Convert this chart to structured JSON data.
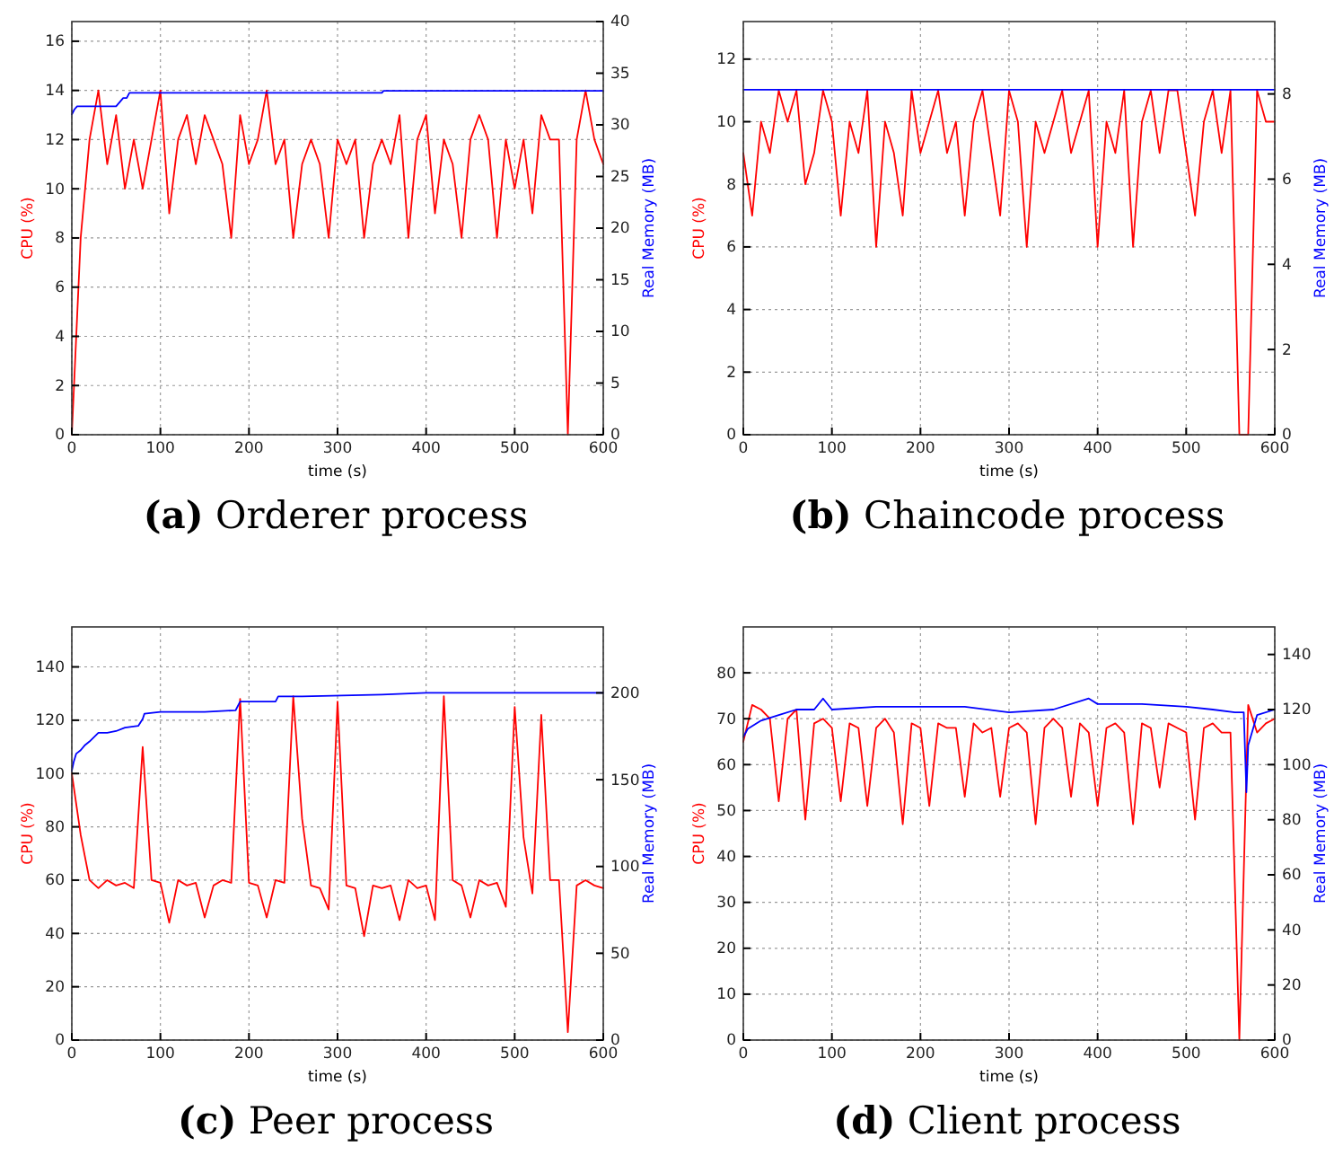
{
  "chart_data": [
    {
      "type": "line",
      "title": "(a) Orderer process",
      "xlabel": "time (s)",
      "ylabel": "CPU (%)",
      "y2label": "Real Memory (MB)",
      "xlim": [
        0,
        600
      ],
      "xticks": [
        0,
        100,
        200,
        300,
        400,
        500,
        600
      ],
      "ylim": [
        0,
        16.8
      ],
      "yticks": [
        0,
        2,
        4,
        6,
        8,
        10,
        12,
        14,
        16
      ],
      "y2lim": [
        0,
        40
      ],
      "y2ticks": [
        0,
        5,
        10,
        15,
        20,
        25,
        30,
        35,
        40
      ],
      "grid": true,
      "series": [
        {
          "color": "#ff0000",
          "x": [
            0,
            10,
            20,
            30,
            40,
            50,
            60,
            70,
            80,
            90,
            100,
            110,
            120,
            130,
            140,
            150,
            160,
            170,
            180,
            190,
            200,
            210,
            220,
            230,
            240,
            250,
            260,
            270,
            280,
            290,
            300,
            310,
            320,
            330,
            340,
            350,
            360,
            370,
            380,
            390,
            400,
            410,
            420,
            430,
            440,
            450,
            460,
            470,
            480,
            490,
            500,
            510,
            520,
            530,
            540,
            550,
            560,
            570,
            580,
            590,
            600
          ],
          "values": [
            0,
            8,
            12,
            14,
            11,
            13,
            10,
            12,
            10,
            12,
            14,
            9,
            12,
            13,
            11,
            13,
            12,
            11,
            8,
            13,
            11,
            12,
            14,
            11,
            12,
            8,
            11,
            12,
            11,
            8,
            12,
            11,
            12,
            8,
            11,
            12,
            11,
            13,
            8,
            12,
            13,
            9,
            12,
            11,
            8,
            12,
            13,
            12,
            8,
            12,
            10,
            12,
            9,
            13,
            12,
            12,
            0,
            12,
            14,
            12,
            11
          ]
        },
        {
          "color": "#0000ff",
          "axis": "y2",
          "x": [
            0,
            3,
            6,
            10,
            50,
            55,
            58,
            62,
            65,
            350,
            352,
            600
          ],
          "values": [
            31,
            31.5,
            31.8,
            31.8,
            31.8,
            32.3,
            32.6,
            32.6,
            33.1,
            33.1,
            33.3,
            33.3
          ]
        }
      ]
    },
    {
      "type": "line",
      "title": "(b) Chaincode process",
      "xlabel": "time (s)",
      "ylabel": "CPU (%)",
      "y2label": "Real Memory (MB)",
      "xlim": [
        0,
        600
      ],
      "xticks": [
        0,
        100,
        200,
        300,
        400,
        500,
        600
      ],
      "ylim": [
        0,
        13.2
      ],
      "yticks": [
        0,
        2,
        4,
        6,
        8,
        10,
        12
      ],
      "y2lim": [
        0,
        9.7
      ],
      "y2ticks": [
        0,
        2,
        4,
        6,
        8
      ],
      "grid": true,
      "series": [
        {
          "color": "#ff0000",
          "x": [
            0,
            10,
            20,
            30,
            40,
            50,
            60,
            70,
            80,
            90,
            100,
            110,
            120,
            130,
            140,
            150,
            160,
            170,
            180,
            190,
            200,
            210,
            220,
            230,
            240,
            250,
            260,
            270,
            280,
            290,
            300,
            310,
            320,
            330,
            340,
            350,
            360,
            370,
            380,
            390,
            400,
            410,
            420,
            430,
            440,
            450,
            460,
            470,
            480,
            490,
            500,
            510,
            520,
            530,
            540,
            550,
            560,
            570,
            580,
            590,
            600
          ],
          "values": [
            9,
            7,
            10,
            9,
            11,
            10,
            11,
            8,
            9,
            11,
            10,
            7,
            10,
            9,
            11,
            6,
            10,
            9,
            7,
            11,
            9,
            10,
            11,
            9,
            10,
            7,
            10,
            11,
            9,
            7,
            11,
            10,
            6,
            10,
            9,
            10,
            11,
            9,
            10,
            11,
            6,
            10,
            9,
            11,
            6,
            10,
            11,
            9,
            11,
            11,
            9,
            7,
            10,
            11,
            9,
            11,
            0,
            0,
            11,
            10,
            10
          ]
        },
        {
          "color": "#0000ff",
          "axis": "y2",
          "x": [
            0,
            600
          ],
          "values": [
            8.1,
            8.1
          ]
        }
      ]
    },
    {
      "type": "line",
      "title": "(c) Peer process",
      "xlabel": "time (s)",
      "ylabel": "CPU (%)",
      "y2label": "Real Memory (MB)",
      "xlim": [
        0,
        600
      ],
      "xticks": [
        0,
        100,
        200,
        300,
        400,
        500,
        600
      ],
      "ylim": [
        0,
        155
      ],
      "yticks": [
        0,
        20,
        40,
        60,
        80,
        100,
        120,
        140
      ],
      "y2lim": [
        0,
        238
      ],
      "y2ticks": [
        0,
        50,
        100,
        150,
        200
      ],
      "grid": true,
      "series": [
        {
          "color": "#ff0000",
          "x": [
            0,
            10,
            20,
            30,
            40,
            50,
            60,
            70,
            80,
            90,
            100,
            110,
            120,
            130,
            140,
            150,
            160,
            170,
            180,
            190,
            200,
            210,
            220,
            230,
            240,
            250,
            260,
            270,
            280,
            290,
            300,
            310,
            320,
            330,
            340,
            350,
            360,
            370,
            380,
            390,
            400,
            410,
            420,
            430,
            440,
            450,
            460,
            470,
            480,
            490,
            500,
            510,
            520,
            530,
            540,
            550,
            560,
            570,
            580,
            590,
            600
          ],
          "values": [
            100,
            77,
            60,
            57,
            60,
            58,
            59,
            57,
            110,
            60,
            59,
            44,
            60,
            58,
            59,
            46,
            58,
            60,
            59,
            128,
            59,
            58,
            46,
            60,
            59,
            129,
            83,
            58,
            57,
            49,
            127,
            58,
            57,
            39,
            58,
            57,
            58,
            45,
            60,
            57,
            58,
            45,
            129,
            60,
            58,
            46,
            60,
            58,
            59,
            50,
            125,
            76,
            55,
            122,
            60,
            60,
            3,
            58,
            60,
            58,
            57
          ]
        },
        {
          "color": "#0000ff",
          "axis": "y2",
          "x": [
            0,
            2,
            5,
            10,
            15,
            20,
            30,
            40,
            50,
            60,
            75,
            80,
            82,
            100,
            150,
            185,
            190,
            230,
            233,
            260,
            350,
            400,
            600
          ],
          "values": [
            155,
            160,
            165,
            167,
            170,
            172,
            177,
            177,
            178,
            180,
            181,
            185,
            188,
            189,
            189,
            190,
            195,
            195,
            198,
            198,
            199,
            200,
            200
          ]
        }
      ]
    },
    {
      "type": "line",
      "title": "(d) Client process",
      "xlabel": "time (s)",
      "ylabel": "CPU (%)",
      "y2label": "Real Memory (MB)",
      "xlim": [
        0,
        600
      ],
      "xticks": [
        0,
        100,
        200,
        300,
        400,
        500,
        600
      ],
      "ylim": [
        0,
        90
      ],
      "yticks": [
        0,
        10,
        20,
        30,
        40,
        50,
        60,
        70,
        80
      ],
      "y2lim": [
        0,
        150
      ],
      "y2ticks": [
        0,
        20,
        40,
        60,
        80,
        100,
        120,
        140
      ],
      "grid": true,
      "series": [
        {
          "color": "#ff0000",
          "x": [
            0,
            10,
            20,
            30,
            40,
            50,
            60,
            70,
            80,
            90,
            100,
            110,
            120,
            130,
            140,
            150,
            160,
            170,
            180,
            190,
            200,
            210,
            220,
            230,
            240,
            250,
            260,
            270,
            280,
            290,
            300,
            310,
            320,
            330,
            340,
            350,
            360,
            370,
            380,
            390,
            400,
            410,
            420,
            430,
            440,
            450,
            460,
            470,
            480,
            490,
            500,
            510,
            520,
            530,
            540,
            550,
            560,
            570,
            580,
            590,
            600
          ],
          "values": [
            65,
            73,
            72,
            70,
            52,
            70,
            72,
            48,
            69,
            70,
            68,
            52,
            69,
            68,
            51,
            68,
            70,
            67,
            47,
            69,
            68,
            51,
            69,
            68,
            68,
            53,
            69,
            67,
            68,
            53,
            68,
            69,
            67,
            47,
            68,
            70,
            68,
            53,
            69,
            67,
            51,
            68,
            69,
            67,
            47,
            69,
            68,
            55,
            69,
            68,
            67,
            48,
            68,
            69,
            67,
            67,
            0,
            73,
            67,
            69,
            70
          ]
        },
        {
          "color": "#0000ff",
          "axis": "y2",
          "x": [
            0,
            5,
            20,
            40,
            60,
            80,
            90,
            100,
            150,
            200,
            250,
            300,
            350,
            390,
            400,
            450,
            500,
            530,
            555,
            565,
            568,
            570,
            580,
            600
          ],
          "values": [
            110,
            113,
            116,
            118,
            120,
            120,
            124,
            120,
            121,
            121,
            121,
            119,
            120,
            124,
            122,
            122,
            121,
            120,
            119,
            119,
            90,
            107,
            118,
            120
          ]
        }
      ]
    }
  ]
}
